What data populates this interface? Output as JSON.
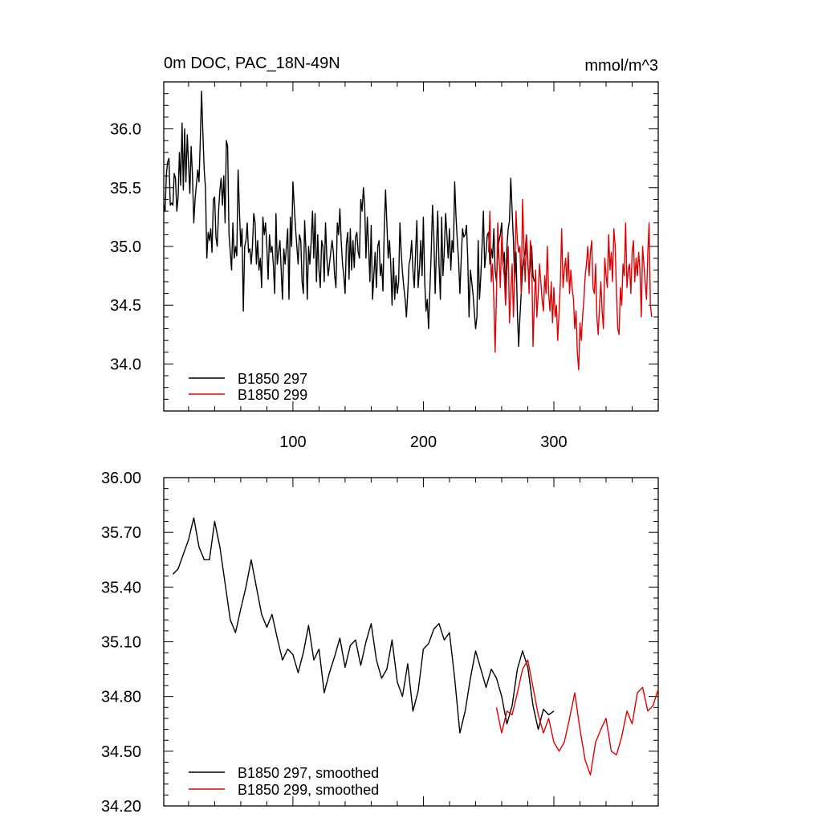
{
  "chart_data": [
    {
      "type": "line",
      "title": "0m DOC, PAC_18N-49N",
      "units": "mmol/m^3",
      "xlabel": "",
      "ylabel": "",
      "xlim": [
        1,
        380
      ],
      "ylim": [
        33.6,
        36.4
      ],
      "x_ticks": [
        100,
        200,
        300
      ],
      "y_ticks": [
        34.0,
        34.5,
        35.0,
        35.5,
        36.0
      ],
      "y_tick_labels": [
        "34.0",
        "34.5",
        "35.0",
        "35.5",
        "36.0"
      ],
      "legend_position": "bottom-left",
      "series": [
        {
          "name": "B1850 297",
          "color": "#000000",
          "x_start": 1,
          "values": [
            35.35,
            35.3,
            35.62,
            35.72,
            35.75,
            35.35,
            35.37,
            35.35,
            35.62,
            35.58,
            35.3,
            35.42,
            35.8,
            35.52,
            36.05,
            35.48,
            36.0,
            35.55,
            35.95,
            35.7,
            35.45,
            35.85,
            35.6,
            35.2,
            35.4,
            35.52,
            35.65,
            35.55,
            35.9,
            36.32,
            35.95,
            35.65,
            35.5,
            34.9,
            35.12,
            35.05,
            35.15,
            34.95,
            35.4,
            35.42,
            35.08,
            35.0,
            35.3,
            35.48,
            35.58,
            35.35,
            35.6,
            35.2,
            35.9,
            35.85,
            35.1,
            34.95,
            34.8,
            35.2,
            34.9,
            35.0,
            34.92,
            35.65,
            35.3,
            35.0,
            35.15,
            34.45,
            35.0,
            35.05,
            35.2,
            34.95,
            34.98,
            34.85,
            35.0,
            35.28,
            35.2,
            34.85,
            35.05,
            34.8,
            34.9,
            34.65,
            35.25,
            35.1,
            35.2,
            35.0,
            34.72,
            35.1,
            34.95,
            35.0,
            34.85,
            34.6,
            35.28,
            34.85,
            34.95,
            35.05,
            34.8,
            34.55,
            34.98,
            34.85,
            35.0,
            35.15,
            34.55,
            35.25,
            35.0,
            35.55,
            35.35,
            35.15,
            35.0,
            34.85,
            35.1,
            35.05,
            34.7,
            34.6,
            35.22,
            34.95,
            34.55,
            35.0,
            34.85,
            35.05,
            35.3,
            34.9,
            35.28,
            34.7,
            35.1,
            34.8,
            34.65,
            35.05,
            35.0,
            34.7,
            35.2,
            34.9,
            34.75,
            34.85,
            34.95,
            35.05,
            34.95,
            34.75,
            34.65,
            35.2,
            35.1,
            35.32,
            35.05,
            34.85,
            34.75,
            34.6,
            35.02,
            35.12,
            34.72,
            35.15,
            34.8,
            35.05,
            34.82,
            35.08,
            35.12,
            34.95,
            34.9,
            35.4,
            35.3,
            35.5,
            35.35,
            34.9,
            35.25,
            35.0,
            34.7,
            35.18,
            34.55,
            34.75,
            34.95,
            34.65,
            35.0,
            35.05,
            34.75,
            34.85,
            34.62,
            35.15,
            35.48,
            35.2,
            34.9,
            35.05,
            34.85,
            34.5,
            34.9,
            34.55,
            34.75,
            34.6,
            34.7,
            35.2,
            34.95,
            34.78,
            34.65,
            34.55,
            34.4,
            34.6,
            34.85,
            34.9,
            35.05,
            34.8,
            34.65,
            34.95,
            35.22,
            34.65,
            34.82,
            35.05,
            34.75,
            35.25,
            34.7,
            34.45,
            34.55,
            34.3,
            34.65,
            34.95,
            35.35,
            35.1,
            34.6,
            34.98,
            35.3,
            34.85,
            34.55,
            35.25,
            34.75,
            34.95,
            35.28,
            35.1,
            34.9,
            35.15,
            34.8,
            35.05,
            34.95,
            35.55,
            35.25,
            35.05,
            34.88,
            34.6,
            34.9,
            35.15,
            35.08,
            35.1,
            35.18,
            34.9,
            34.4,
            34.8,
            34.7,
            34.6,
            34.45,
            34.3,
            34.4,
            35.05,
            34.55,
            34.75,
            35.02,
            35.3,
            34.82,
            34.95,
            35.1,
            35.12,
            34.85,
            34.98,
            34.9,
            35.15,
            34.8,
            34.7,
            34.95,
            35.05,
            35.1,
            35.2,
            34.85,
            34.95,
            34.6,
            35.0,
            35.15,
            35.22,
            35.58,
            35.3,
            35.05,
            34.7,
            34.95,
            34.45,
            34.15,
            34.4,
            34.6,
            34.8,
            34.9,
            34.95,
            35.1,
            34.85,
            34.72,
            34.82,
            35.0,
            34.75,
            34.7
          ]
        },
        {
          "name": "B1850 299",
          "color": "#e00000",
          "x_start": 250,
          "values": [
            34.95,
            35.3,
            34.7,
            34.85,
            34.55,
            34.1,
            34.6,
            35.2,
            34.9,
            34.65,
            35.1,
            34.85,
            34.75,
            34.5,
            34.8,
            35.0,
            34.35,
            34.6,
            34.85,
            34.4,
            34.75,
            35.3,
            35.05,
            34.95,
            35.0,
            34.6,
            35.4,
            35.0,
            34.7,
            35.1,
            34.9,
            34.6,
            35.05,
            34.95,
            34.15,
            34.5,
            34.8,
            34.4,
            34.6,
            34.85,
            34.7,
            34.55,
            34.45,
            34.75,
            34.6,
            35.0,
            34.6,
            34.45,
            34.7,
            34.35,
            34.65,
            34.4,
            34.5,
            34.2,
            34.45,
            34.7,
            35.15,
            34.65,
            34.8,
            34.9,
            34.7,
            34.95,
            34.6,
            34.8,
            34.65,
            34.55,
            34.3,
            34.45,
            34.1,
            33.95,
            34.35,
            34.2,
            34.4,
            34.55,
            34.75,
            34.85,
            35.0,
            34.75,
            34.95,
            35.05,
            34.65,
            34.6,
            34.85,
            34.4,
            34.25,
            34.5,
            34.7,
            34.45,
            34.3,
            34.9,
            34.75,
            34.65,
            35.1,
            34.8,
            34.95,
            34.7,
            35.15,
            35.0,
            34.6,
            34.3,
            34.25,
            34.65,
            34.5,
            34.85,
            34.75,
            35.2,
            34.65,
            34.8,
            34.85,
            34.6,
            34.95,
            35.05,
            34.7,
            34.9,
            34.75,
            34.95,
            34.8,
            34.4,
            35.0,
            34.85,
            34.7,
            34.55,
            34.95,
            35.2,
            34.5,
            34.4
          ]
        }
      ]
    },
    {
      "type": "line",
      "title": "",
      "xlabel": "",
      "ylabel": "",
      "xlim": [
        1,
        380
      ],
      "ylim": [
        34.2,
        36.0
      ],
      "y_ticks": [
        34.2,
        34.5,
        34.8,
        35.1,
        35.4,
        35.7,
        36.0
      ],
      "y_tick_labels": [
        "34.20",
        "34.50",
        "34.80",
        "35.10",
        "35.40",
        "35.70",
        "36.00"
      ],
      "legend_position": "bottom-left",
      "series": [
        {
          "name": "B1850 297, smoothed",
          "color": "#000000",
          "x": [
            8,
            12,
            16,
            20,
            24,
            28,
            32,
            36,
            40,
            44,
            48,
            52,
            56,
            60,
            64,
            68,
            72,
            76,
            80,
            84,
            88,
            92,
            96,
            100,
            104,
            108,
            112,
            116,
            120,
            124,
            128,
            132,
            136,
            140,
            144,
            148,
            152,
            156,
            160,
            164,
            168,
            172,
            176,
            180,
            184,
            188,
            192,
            196,
            200,
            204,
            208,
            212,
            216,
            220,
            224,
            228,
            232,
            236,
            240,
            244,
            248,
            252,
            256,
            260,
            264,
            268,
            272,
            276,
            280,
            284,
            288,
            292,
            296,
            300
          ],
          "values": [
            35.47,
            35.5,
            35.58,
            35.66,
            35.78,
            35.62,
            35.55,
            35.55,
            35.76,
            35.62,
            35.42,
            35.22,
            35.15,
            35.28,
            35.4,
            35.55,
            35.4,
            35.25,
            35.18,
            35.25,
            35.12,
            35.0,
            35.06,
            35.03,
            34.93,
            35.04,
            35.19,
            35.0,
            35.06,
            34.82,
            34.93,
            35.02,
            35.12,
            34.96,
            35.08,
            35.11,
            34.97,
            35.1,
            35.2,
            35.0,
            34.9,
            34.95,
            35.11,
            34.88,
            34.8,
            34.98,
            34.72,
            34.83,
            35.06,
            35.09,
            35.17,
            35.2,
            35.11,
            35.15,
            34.9,
            34.6,
            34.72,
            34.9,
            35.05,
            34.95,
            34.85,
            34.95,
            34.9,
            34.8,
            34.65,
            34.75,
            34.95,
            35.05,
            34.96,
            34.75,
            34.62,
            34.73,
            34.7,
            34.72
          ]
        },
        {
          "name": "B1850 299, smoothed",
          "color": "#e00000",
          "x": [
            256,
            260,
            264,
            268,
            272,
            276,
            280,
            284,
            288,
            292,
            296,
            300,
            304,
            308,
            312,
            316,
            320,
            324,
            328,
            332,
            336,
            340,
            344,
            348,
            352,
            356,
            360,
            364,
            368,
            372,
            376,
            380
          ],
          "values": [
            34.74,
            34.6,
            34.72,
            34.7,
            34.82,
            34.95,
            35.0,
            34.85,
            34.7,
            34.6,
            34.68,
            34.55,
            34.5,
            34.55,
            34.68,
            34.82,
            34.62,
            34.45,
            34.37,
            34.55,
            34.62,
            34.68,
            34.5,
            34.48,
            34.58,
            34.72,
            34.65,
            34.82,
            34.85,
            34.72,
            34.75,
            34.84
          ]
        }
      ]
    }
  ]
}
